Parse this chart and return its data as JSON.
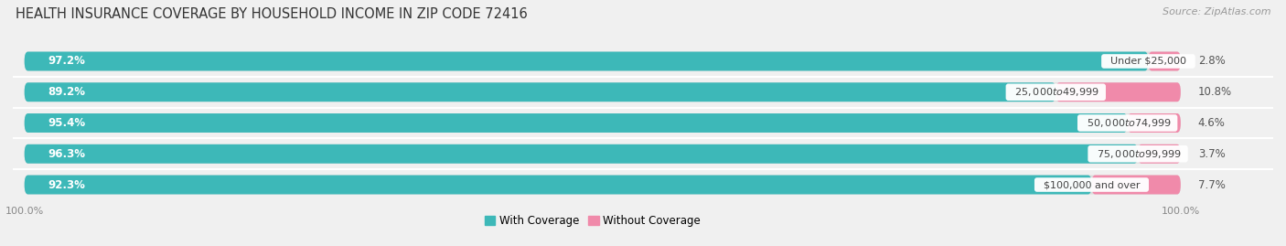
{
  "title": "HEALTH INSURANCE COVERAGE BY HOUSEHOLD INCOME IN ZIP CODE 72416",
  "source": "Source: ZipAtlas.com",
  "categories": [
    "Under $25,000",
    "$25,000 to $49,999",
    "$50,000 to $74,999",
    "$75,000 to $99,999",
    "$100,000 and over"
  ],
  "with_coverage": [
    97.2,
    89.2,
    95.4,
    96.3,
    92.3
  ],
  "without_coverage": [
    2.8,
    10.8,
    4.6,
    3.7,
    7.7
  ],
  "color_with": "#3db8b8",
  "color_without": "#f08aaa",
  "color_with_light": "#7acfcf",
  "bg_color": "#f0f0f0",
  "bar_bg_color": "#dcdcdc",
  "title_fontsize": 10.5,
  "source_fontsize": 8,
  "label_fontsize": 8.5,
  "legend_fontsize": 8.5,
  "axis_label_fontsize": 8,
  "bar_height": 0.62,
  "bar_gap": 0.12,
  "xlim_left": -1.0,
  "xlim_right": 108.0
}
